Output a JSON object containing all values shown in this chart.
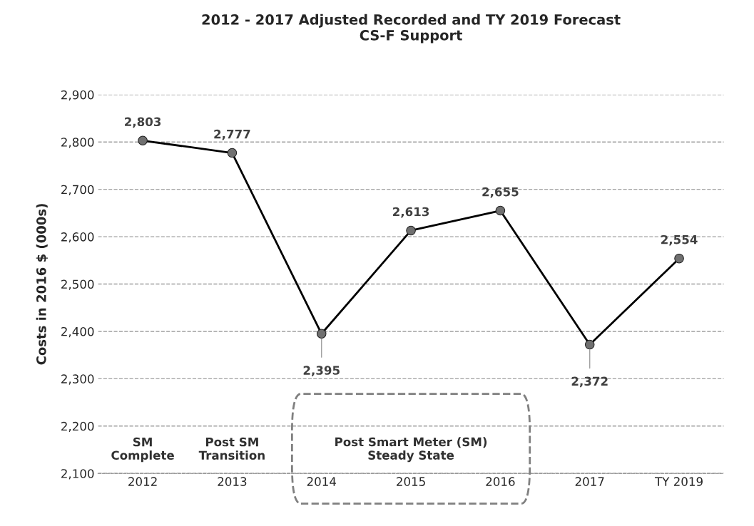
{
  "chart_data": {
    "type": "line",
    "title": "2012 - 2017 Adjusted Recorded and TY 2019 Forecast\nCS-F Support",
    "ylabel": "Costs in 2016 $ (000s)",
    "categories": [
      "2012",
      "2013",
      "2014",
      "2015",
      "2016",
      "2017",
      "TY 2019"
    ],
    "series": [
      {
        "color": "#000000",
        "values": [
          2803,
          2777,
          2395,
          2613,
          2655,
          2372,
          2554
        ]
      }
    ],
    "value_labels": [
      "2,803",
      "2,777",
      "2,395",
      "2,613",
      "2,655",
      "2,372",
      "2,554"
    ],
    "ylim": [
      2100,
      2900
    ],
    "yticks": [
      {
        "value": 2100,
        "label": "2,100"
      },
      {
        "value": 2200,
        "label": "2,200"
      },
      {
        "value": 2300,
        "label": "2,300"
      },
      {
        "value": 2400,
        "label": "2,400"
      },
      {
        "value": 2500,
        "label": "2,500"
      },
      {
        "value": 2600,
        "label": "2,600"
      },
      {
        "value": 2700,
        "label": "2,700"
      },
      {
        "value": 2800,
        "label": "2,800"
      },
      {
        "value": 2900,
        "label": "2,900"
      }
    ],
    "grid": "y",
    "marker": "circle",
    "line_style": "solid",
    "legend": false,
    "annotations": [
      "SM\nComplete",
      "Post SM\nTransition",
      "Post Smart Meter (SM)\nSteady State"
    ]
  }
}
